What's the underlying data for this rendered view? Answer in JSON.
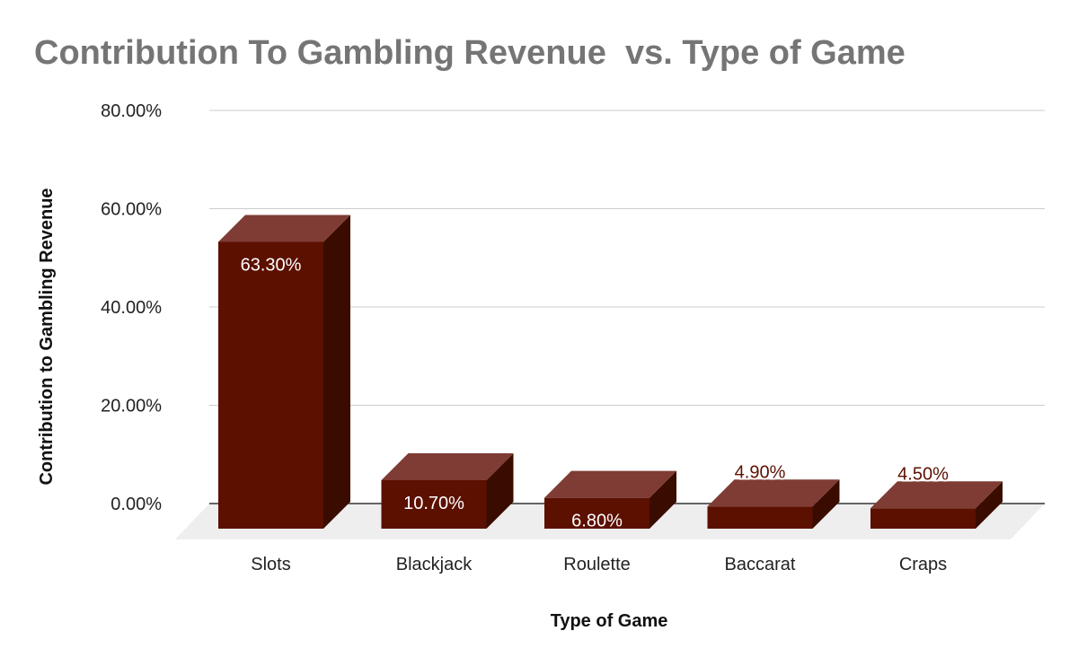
{
  "chart_data": {
    "type": "bar",
    "title": "Contribution To Gambling Revenue  vs. Type of Game",
    "xlabel": "Type of Game",
    "ylabel": "Contribution to Gambling Revenue",
    "categories": [
      "Slots",
      "Blackjack",
      "Roulette",
      "Baccarat",
      "Craps"
    ],
    "values": [
      63.3,
      10.7,
      6.8,
      4.9,
      4.5
    ],
    "value_labels": [
      "63.30%",
      "10.70%",
      "6.80%",
      "4.90%",
      "4.50%"
    ],
    "yticks": [
      "0.00%",
      "20.00%",
      "40.00%",
      "60.00%",
      "80.00%"
    ],
    "ytick_values": [
      0,
      20,
      40,
      60,
      80
    ],
    "ylim": [
      0,
      80
    ],
    "grid": true,
    "legend": "none",
    "style": "3d-column",
    "colors": {
      "bar_front": "#5c1000",
      "bar_top": "#7e3c34",
      "bar_side": "#3a0c00",
      "floor": "#eeeeee",
      "grid": "#cccccc",
      "title": "#757575",
      "label_inside": "#ffffff",
      "label_outside": "#5c1000"
    }
  }
}
